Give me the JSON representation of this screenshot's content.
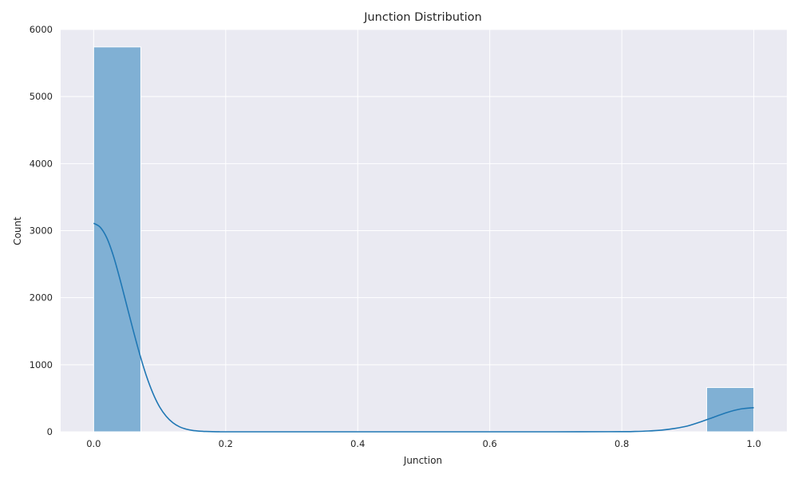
{
  "chart_data": {
    "type": "histogram",
    "title": "Junction Distribution",
    "xlabel": "Junction",
    "ylabel": "Count",
    "xlim": [
      -0.05,
      1.05
    ],
    "ylim": [
      0,
      6000
    ],
    "x_ticks": [
      0.0,
      0.2,
      0.4,
      0.6,
      0.8,
      1.0
    ],
    "x_tick_labels": [
      "0.0",
      "0.2",
      "0.4",
      "0.6",
      "0.8",
      "1.0"
    ],
    "y_ticks": [
      0,
      1000,
      2000,
      3000,
      4000,
      5000,
      6000
    ],
    "y_tick_labels": [
      "0",
      "1000",
      "2000",
      "3000",
      "4000",
      "5000",
      "6000"
    ],
    "grid": true,
    "bins": [
      {
        "x0": 0.0,
        "x1": 0.0714,
        "count": 5740
      },
      {
        "x0": 0.9286,
        "x1": 1.0,
        "count": 660
      }
    ],
    "kde": {
      "x": [
        0.0,
        0.01,
        0.02,
        0.03,
        0.04,
        0.05,
        0.06,
        0.07,
        0.08,
        0.09,
        0.1,
        0.11,
        0.12,
        0.13,
        0.14,
        0.15,
        0.16,
        0.17,
        0.18,
        0.19,
        0.2,
        0.3,
        0.4,
        0.5,
        0.6,
        0.7,
        0.8,
        0.82,
        0.84,
        0.86,
        0.88,
        0.9,
        0.92,
        0.94,
        0.96,
        0.98,
        1.0
      ],
      "y": [
        3110,
        3050,
        2890,
        2620,
        2270,
        1890,
        1510,
        1150,
        830,
        570,
        370,
        230,
        135,
        75,
        40,
        20,
        10,
        5,
        2,
        1,
        0,
        0,
        0,
        0,
        0,
        0,
        2,
        5,
        12,
        25,
        50,
        88,
        150,
        220,
        290,
        340,
        360
      ]
    },
    "colors": {
      "bar_fill": "#80b0d4",
      "bar_stroke": "#ffffff",
      "kde_line": "#1f77b4",
      "plot_background": "#eaeaf2",
      "grid": "#ffffff"
    }
  }
}
